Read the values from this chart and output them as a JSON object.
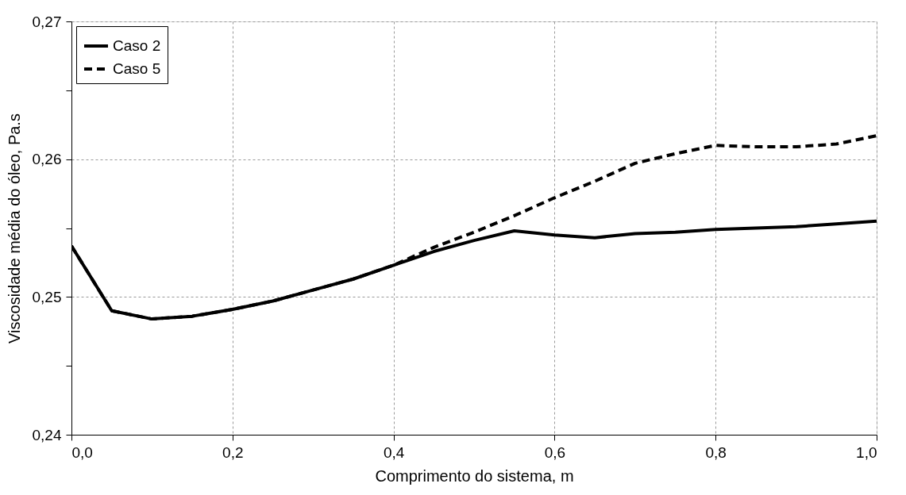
{
  "chart_data": {
    "type": "line",
    "xlabel": "Comprimento do sistema, m",
    "ylabel": "Viscosidade média do óleo, Pa.s",
    "x": [
      0,
      0.05,
      0.1,
      0.15,
      0.2,
      0.25,
      0.3,
      0.35,
      0.4,
      0.45,
      0.5,
      0.55,
      0.6,
      0.65,
      0.7,
      0.75,
      0.8,
      0.85,
      0.9,
      0.95,
      1.0
    ],
    "series": [
      {
        "name": "Caso 2",
        "color": "#000000",
        "line_style": "solid",
        "values": [
          0.2537,
          0.249,
          0.2484,
          0.2486,
          0.2491,
          0.2497,
          0.2505,
          0.2513,
          0.2523,
          0.2533,
          0.2541,
          0.2548,
          0.2545,
          0.2543,
          0.2546,
          0.2547,
          0.2549,
          0.255,
          0.2551,
          0.2553,
          0.2555
        ]
      },
      {
        "name": "Caso 5",
        "color": "#000000",
        "line_style": "dashed",
        "values": [
          0.2537,
          0.249,
          0.2484,
          0.2486,
          0.2491,
          0.2497,
          0.2505,
          0.2513,
          0.2523,
          0.2536,
          0.2547,
          0.2559,
          0.2572,
          0.2584,
          0.2597,
          0.2604,
          0.261,
          0.2609,
          0.2609,
          0.2611,
          0.2617
        ]
      }
    ],
    "xlim": [
      0,
      1.0
    ],
    "ylim": [
      0.24,
      0.27
    ],
    "xticks": [
      {
        "value": 0,
        "label": "0,0"
      },
      {
        "value": 0.2,
        "label": "0,2"
      },
      {
        "value": 0.4,
        "label": "0,4"
      },
      {
        "value": 0.6,
        "label": "0,6"
      },
      {
        "value": 0.8,
        "label": "0,8"
      },
      {
        "value": 1.0,
        "label": "1,0"
      }
    ],
    "yticks": [
      {
        "value": 0.24,
        "label": "0,24"
      },
      {
        "value": 0.245,
        "label": null
      },
      {
        "value": 0.25,
        "label": "0,25"
      },
      {
        "value": 0.255,
        "label": null
      },
      {
        "value": 0.26,
        "label": "0,26"
      },
      {
        "value": 0.265,
        "label": null
      },
      {
        "value": 0.27,
        "label": "0,27"
      }
    ],
    "grid": true,
    "legend": "top left",
    "marker": "none"
  }
}
